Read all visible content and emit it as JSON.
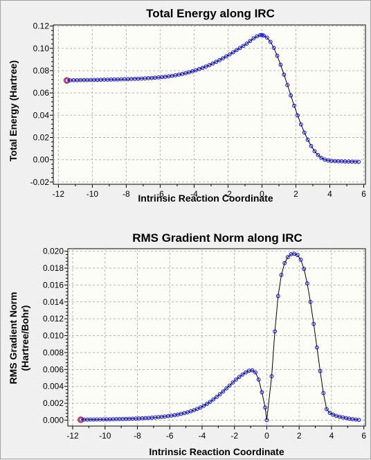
{
  "chart_data": [
    {
      "type": "line",
      "title": "Total Energy along IRC",
      "xlabel": "Intrinsic Reaction Coordinate",
      "ylabel": "Total Energy (Hartree)",
      "xlim": [
        -12.3,
        6.1
      ],
      "ylim": [
        -0.022,
        0.121
      ],
      "xticks": [
        -12,
        -10,
        -8,
        -6,
        -4,
        -2,
        0,
        2,
        4,
        6
      ],
      "yticks": [
        -0.02,
        0.0,
        0.02,
        0.04,
        0.06,
        0.08,
        0.1,
        0.12
      ],
      "ytick_labels": [
        "-0.02",
        "0.00",
        "0.02",
        "0.04",
        "0.06",
        "0.08",
        "0.10",
        "0.12"
      ],
      "grid": true,
      "colors": {
        "line": "#000000",
        "marker": "#0000ff",
        "highlight": "#cc0000",
        "plot_bg": "#fdfdf7",
        "grid": "#b4b4b4"
      },
      "series": [
        {
          "x": [
            -11.5,
            -11.3,
            -11.1,
            -10.9,
            -10.7,
            -10.5,
            -10.3,
            -10.1,
            -9.9,
            -9.7,
            -9.5,
            -9.3,
            -9.1,
            -8.9,
            -8.7,
            -8.5,
            -8.3,
            -8.1,
            -7.9,
            -7.7,
            -7.5,
            -7.3,
            -7.1,
            -6.9,
            -6.7,
            -6.5,
            -6.3,
            -6.1,
            -5.9,
            -5.7,
            -5.5,
            -5.3,
            -5.1,
            -4.9,
            -4.7,
            -4.5,
            -4.3,
            -4.1,
            -3.9,
            -3.7,
            -3.5,
            -3.3,
            -3.1,
            -2.9,
            -2.7,
            -2.5,
            -2.3,
            -2.1,
            -1.9,
            -1.7,
            -1.5,
            -1.3,
            -1.1,
            -0.9,
            -0.7,
            -0.5,
            -0.3,
            -0.1,
            0.0,
            0.1,
            0.3,
            0.5,
            0.7,
            0.9,
            1.1,
            1.3,
            1.5,
            1.7,
            1.9,
            2.1,
            2.3,
            2.5,
            2.7,
            2.9,
            3.1,
            3.3,
            3.5,
            3.7,
            3.9,
            4.1,
            4.3,
            4.5,
            4.7,
            4.9,
            5.1,
            5.3,
            5.5,
            5.7
          ],
          "y": [
            0.0712,
            0.0713,
            0.0714,
            0.0714,
            0.0715,
            0.0715,
            0.0716,
            0.0716,
            0.0717,
            0.0717,
            0.0718,
            0.0719,
            0.0719,
            0.072,
            0.0721,
            0.0721,
            0.0722,
            0.0723,
            0.0724,
            0.0725,
            0.0726,
            0.0727,
            0.0729,
            0.073,
            0.0732,
            0.0734,
            0.0736,
            0.0739,
            0.0742,
            0.0745,
            0.0749,
            0.0753,
            0.0758,
            0.0764,
            0.077,
            0.0777,
            0.0785,
            0.0794,
            0.0803,
            0.0814,
            0.0825,
            0.0837,
            0.085,
            0.0864,
            0.0879,
            0.0894,
            0.0911,
            0.0928,
            0.0946,
            0.0965,
            0.0984,
            0.1003,
            0.1022,
            0.1042,
            0.1066,
            0.1089,
            0.1108,
            0.1119,
            0.112,
            0.1115,
            0.1096,
            0.1058,
            0.1004,
            0.0934,
            0.0853,
            0.0764,
            0.0671,
            0.0577,
            0.0485,
            0.0398,
            0.0317,
            0.0244,
            0.0179,
            0.0123,
            0.0077,
            0.0042,
            0.0017,
            0.0002,
            -0.0006,
            -0.001,
            -0.0012,
            -0.0013,
            -0.0014,
            -0.0015,
            -0.0016,
            -0.0017,
            -0.0018,
            -0.0019
          ]
        }
      ]
    },
    {
      "type": "line",
      "title": "RMS Gradient Norm along IRC",
      "xlabel": "Intrinsic Reaction Coordinate",
      "ylabel": "RMS Gradient Norm (Hartree/Bohr)",
      "xlim": [
        -12.3,
        6.1
      ],
      "ylim": [
        -0.0007,
        0.0203
      ],
      "xticks": [
        -12,
        -10,
        -8,
        -6,
        -4,
        -2,
        0,
        2,
        4,
        6
      ],
      "yticks": [
        0.0,
        0.002,
        0.004,
        0.006,
        0.008,
        0.01,
        0.012,
        0.014,
        0.016,
        0.018,
        0.02
      ],
      "ytick_labels": [
        "0.000",
        "0.002",
        "0.004",
        "0.006",
        "0.008",
        "0.010",
        "0.012",
        "0.014",
        "0.016",
        "0.018",
        "0.020"
      ],
      "grid": true,
      "colors": {
        "line": "#000000",
        "marker": "#0000ff",
        "highlight": "#cc0000",
        "plot_bg": "#fdfdf7",
        "grid": "#b4b4b4"
      },
      "series": [
        {
          "x": [
            -11.5,
            -11.3,
            -11.1,
            -10.9,
            -10.7,
            -10.5,
            -10.3,
            -10.1,
            -9.9,
            -9.7,
            -9.5,
            -9.3,
            -9.1,
            -8.9,
            -8.7,
            -8.5,
            -8.3,
            -8.1,
            -7.9,
            -7.7,
            -7.5,
            -7.3,
            -7.1,
            -6.9,
            -6.7,
            -6.5,
            -6.3,
            -6.1,
            -5.9,
            -5.7,
            -5.5,
            -5.3,
            -5.1,
            -4.9,
            -4.7,
            -4.5,
            -4.3,
            -4.1,
            -3.9,
            -3.7,
            -3.5,
            -3.3,
            -3.1,
            -2.9,
            -2.7,
            -2.5,
            -2.3,
            -2.1,
            -1.9,
            -1.7,
            -1.5,
            -1.3,
            -1.1,
            -0.9,
            -0.7,
            -0.5,
            -0.3,
            -0.1,
            0.0,
            0.3,
            0.5,
            0.7,
            0.9,
            1.1,
            1.3,
            1.5,
            1.7,
            1.9,
            2.1,
            2.3,
            2.5,
            2.7,
            2.9,
            3.1,
            3.3,
            3.5,
            3.7,
            3.9,
            4.1,
            4.3,
            4.5,
            4.7,
            4.9,
            5.1,
            5.3,
            5.5,
            5.7
          ],
          "y": [
            5e-05,
            6e-05,
            6e-05,
            7e-05,
            7e-05,
            8e-05,
            8e-05,
            9e-05,
            0.0001,
            0.0001,
            0.00011,
            0.00012,
            0.00013,
            0.00014,
            0.00015,
            0.00016,
            0.00017,
            0.00019,
            0.0002,
            0.00022,
            0.00024,
            0.00026,
            0.00029,
            0.00032,
            0.00035,
            0.00039,
            0.00043,
            0.00048,
            0.00053,
            0.00059,
            0.00066,
            0.00074,
            0.00083,
            0.00093,
            0.00105,
            0.00118,
            0.00133,
            0.0015,
            0.0017,
            0.00192,
            0.00217,
            0.00245,
            0.00275,
            0.00307,
            0.0034,
            0.00375,
            0.0041,
            0.00446,
            0.0048,
            0.00512,
            0.0054,
            0.00565,
            0.00585,
            0.0059,
            0.00565,
            0.0048,
            0.0033,
            0.0015,
            0.0,
            0.0052,
            0.0105,
            0.0147,
            0.0172,
            0.0186,
            0.0193,
            0.01965,
            0.0197,
            0.01955,
            0.019,
            0.0179,
            0.0162,
            0.014,
            0.0114,
            0.0086,
            0.0058,
            0.0032,
            0.0013,
            0.00085,
            0.00065,
            0.0005,
            0.0004,
            0.00032,
            0.00025,
            0.00018,
            0.00012,
            7e-05,
            3e-05
          ]
        }
      ]
    }
  ]
}
